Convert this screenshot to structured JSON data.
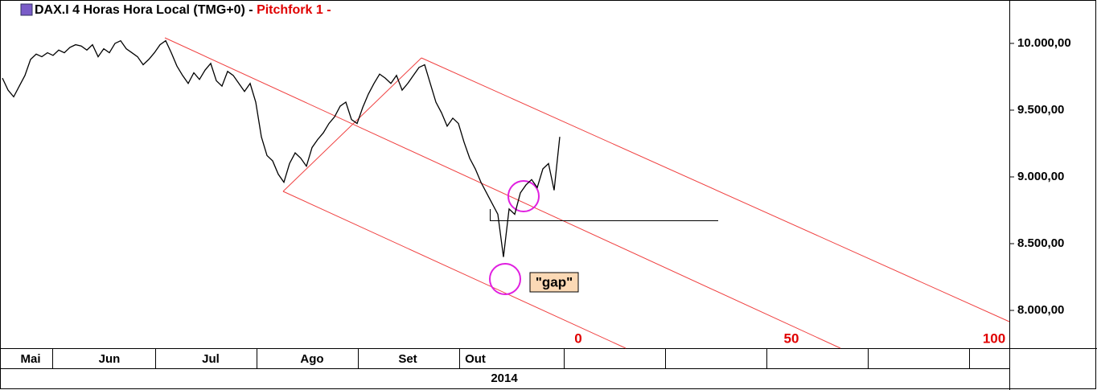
{
  "chart_data": {
    "type": "line",
    "title": "DAX.I 4 Horas Hora Local (TMG+0)  -",
    "subtitle": "Pitchfork 1 -",
    "annotation": "\"gap\"",
    "pitchfork_levels": [
      0,
      50,
      100
    ],
    "x_axis_label": "2014",
    "color": "#000000",
    "categories": [
      null,
      null,
      null,
      null,
      null,
      "Mai",
      null,
      null,
      null,
      null,
      null,
      null,
      null,
      null,
      null,
      null,
      null,
      null,
      null,
      "Jun",
      null,
      null,
      null,
      null,
      null,
      null,
      null,
      null,
      null,
      null,
      null,
      null,
      null,
      null,
      null,
      null,
      null,
      "Jul",
      null,
      null,
      null,
      null,
      null,
      null,
      null,
      null,
      null,
      null,
      null,
      null,
      null,
      null,
      null,
      null,
      null,
      "Ago",
      null,
      null,
      null,
      null,
      null,
      null,
      null,
      null,
      null,
      null,
      null,
      null,
      null,
      null,
      null,
      null,
      "Set",
      null,
      null,
      null,
      null,
      null,
      null,
      null,
      null,
      null,
      null,
      null,
      "Out",
      null,
      null,
      null,
      null,
      null,
      null,
      null,
      null,
      null,
      null,
      null,
      null,
      null,
      null,
      null
    ],
    "values": [
      9740,
      9650,
      9600,
      9680,
      9760,
      9880,
      9920,
      9900,
      9930,
      9910,
      9950,
      9930,
      9970,
      9990,
      9980,
      9950,
      9990,
      9900,
      9960,
      9930,
      10000,
      10020,
      9960,
      9930,
      9900,
      9840,
      9880,
      9930,
      9990,
      10020,
      9930,
      9830,
      9760,
      9700,
      9780,
      9730,
      9800,
      9850,
      9720,
      9680,
      9790,
      9760,
      9700,
      9640,
      9700,
      9560,
      9300,
      9160,
      9120,
      9020,
      8960,
      9100,
      9180,
      9140,
      9080,
      9220,
      9280,
      9330,
      9400,
      9450,
      9530,
      9560,
      9430,
      9400,
      9520,
      9620,
      9700,
      9770,
      9740,
      9700,
      9760,
      9650,
      9700,
      9760,
      9820,
      9840,
      9700,
      9560,
      9480,
      9380,
      9440,
      9400,
      9260,
      9140,
      9060,
      8960,
      8880,
      8800,
      8720,
      8400,
      8760,
      8720,
      8880,
      8940,
      8980,
      8920,
      9060,
      9100,
      8900,
      9300
    ],
    "ylim": [
      7717,
      10325
    ],
    "yticks": [
      {
        "value": 8000,
        "label": "8.000,00"
      },
      {
        "value": 8500,
        "label": "8.500,00"
      },
      {
        "value": 9000,
        "label": "9.000,00"
      },
      {
        "value": 9500,
        "label": "9.500,00"
      },
      {
        "value": 10000,
        "label": "10.000,00"
      }
    ]
  }
}
